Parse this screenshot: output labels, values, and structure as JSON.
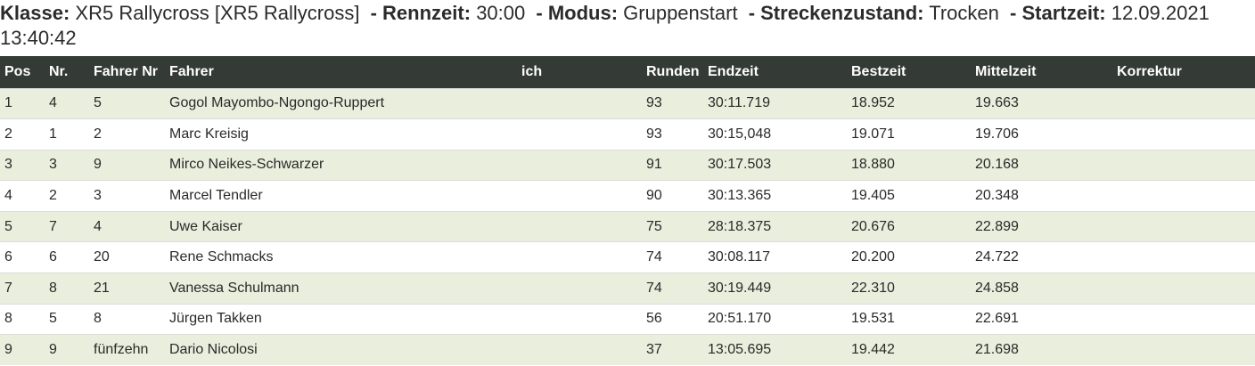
{
  "header": {
    "klasse_label": "Klasse:",
    "klasse_value": "XR5 Rallycross [XR5 Rallycross]",
    "rennzeit_label": "- Rennzeit:",
    "rennzeit_value": "30:00",
    "modus_label": "- Modus:",
    "modus_value": "Gruppenstart",
    "strecke_label": "- Streckenzustand:",
    "strecke_value": "Trocken",
    "startzeit_label": "- Startzeit:",
    "startzeit_value": "12.09.2021 13:40:42"
  },
  "table": {
    "columns": [
      "Pos",
      "Nr.",
      "Fahrer Nr",
      "Fahrer",
      "ich",
      "Runden",
      "Endzeit",
      "Bestzeit",
      "Mittelzeit",
      "Korrektur"
    ],
    "rows": [
      {
        "pos": "1",
        "nr": "4",
        "fahrer_nr": "5",
        "fahrer": "Gogol Mayombo-Ngongo-Ruppert",
        "ich": "",
        "runden": "93",
        "endzeit": "30:11.719",
        "bestzeit": "18.952",
        "mittelzeit": "19.663",
        "korrektur": ""
      },
      {
        "pos": "2",
        "nr": "1",
        "fahrer_nr": "2",
        "fahrer": "Marc Kreisig",
        "ich": "",
        "runden": "93",
        "endzeit": "30:15,048",
        "bestzeit": "19.071",
        "mittelzeit": "19.706",
        "korrektur": ""
      },
      {
        "pos": "3",
        "nr": "3",
        "fahrer_nr": "9",
        "fahrer": "Mirco Neikes-Schwarzer",
        "ich": "",
        "runden": "91",
        "endzeit": "30:17.503",
        "bestzeit": "18.880",
        "mittelzeit": "20.168",
        "korrektur": ""
      },
      {
        "pos": "4",
        "nr": "2",
        "fahrer_nr": "3",
        "fahrer": "Marcel Tendler",
        "ich": "",
        "runden": "90",
        "endzeit": "30:13.365",
        "bestzeit": "19.405",
        "mittelzeit": "20.348",
        "korrektur": ""
      },
      {
        "pos": "5",
        "nr": "7",
        "fahrer_nr": "4",
        "fahrer": "Uwe Kaiser",
        "ich": "",
        "runden": "75",
        "endzeit": "28:18.375",
        "bestzeit": "20.676",
        "mittelzeit": "22.899",
        "korrektur": ""
      },
      {
        "pos": "6",
        "nr": "6",
        "fahrer_nr": "20",
        "fahrer": "Rene Schmacks",
        "ich": "",
        "runden": "74",
        "endzeit": "30:08.117",
        "bestzeit": "20.200",
        "mittelzeit": "24.722",
        "korrektur": ""
      },
      {
        "pos": "7",
        "nr": "8",
        "fahrer_nr": "21",
        "fahrer": "Vanessa Schulmann",
        "ich": "",
        "runden": "74",
        "endzeit": "30:19.449",
        "bestzeit": "22.310",
        "mittelzeit": "24.858",
        "korrektur": ""
      },
      {
        "pos": "8",
        "nr": "5",
        "fahrer_nr": "8",
        "fahrer": "Jürgen Takken",
        "ich": "",
        "runden": "56",
        "endzeit": "20:51.170",
        "bestzeit": "19.531",
        "mittelzeit": "22.691",
        "korrektur": ""
      },
      {
        "pos": "9",
        "nr": "9",
        "fahrer_nr": "fünfzehn",
        "fahrer": "Dario Nicolosi",
        "ich": "",
        "runden": "37",
        "endzeit": "13:05.695",
        "bestzeit": "19.442",
        "mittelzeit": "21.698",
        "korrektur": ""
      }
    ]
  },
  "colors": {
    "header_row_bg": "#343a35",
    "odd_row_bg": "#e9eedd",
    "even_row_bg": "#ffffff"
  }
}
